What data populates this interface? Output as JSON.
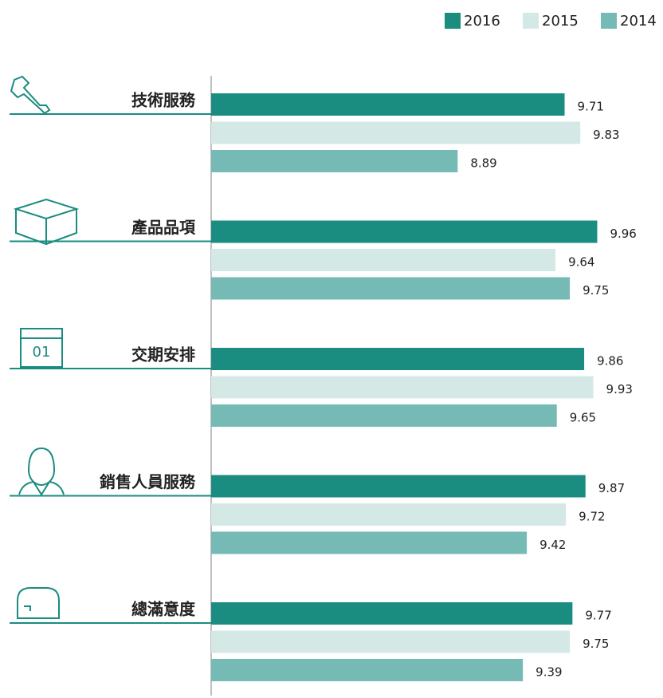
{
  "chart_data": {
    "type": "bar",
    "orientation": "horizontal",
    "categories": [
      "技術服務",
      "產品品項",
      "交期安排",
      "銷售人員服務",
      "總滿意度"
    ],
    "series": [
      {
        "name": "2016",
        "color": "#1a8c80",
        "values": [
          9.71,
          9.96,
          9.86,
          9.87,
          9.77
        ]
      },
      {
        "name": "2015",
        "color": "#d4e9e6",
        "values": [
          9.83,
          9.64,
          9.93,
          9.72,
          9.75
        ]
      },
      {
        "name": "2014",
        "color": "#76bab5",
        "values": [
          8.89,
          9.75,
          9.65,
          9.42,
          9.39
        ]
      }
    ],
    "xlim": [
      7,
      10
    ],
    "legend": "top-right",
    "icon_text": "01"
  }
}
